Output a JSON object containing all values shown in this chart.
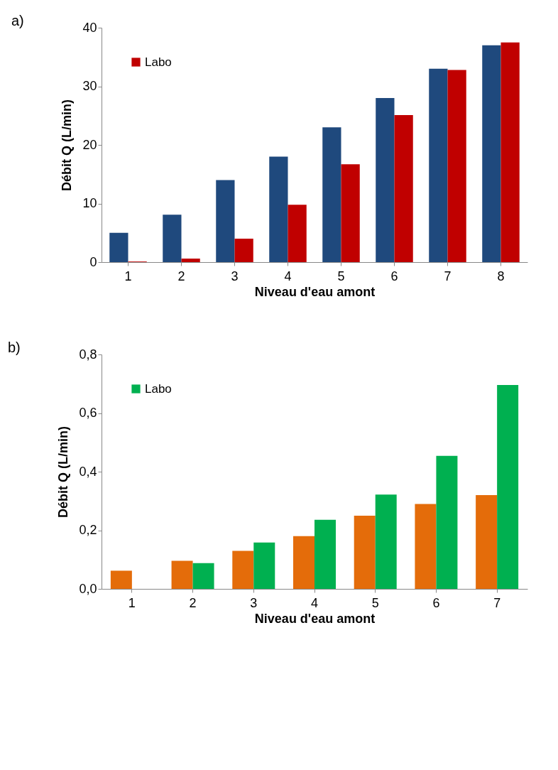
{
  "chart_data": [
    {
      "type": "bar",
      "title": "a)",
      "xlabel": "Niveau d'eau amont",
      "ylabel": "Débit Q (L/min)",
      "categories": [
        "1",
        "2",
        "3",
        "4",
        "5",
        "6",
        "7",
        "8"
      ],
      "series": [
        {
          "color": "#1f497d",
          "values": [
            5.0,
            8.1,
            14.0,
            18.0,
            23.0,
            28.0,
            33.0,
            37.0
          ]
        },
        {
          "name": "Labo",
          "color": "#c00000",
          "values": [
            0.1,
            0.6,
            4.0,
            9.8,
            16.7,
            25.1,
            32.8,
            37.5
          ]
        }
      ],
      "ylim": [
        0,
        40
      ],
      "yticks": [
        0,
        10,
        20,
        30,
        40
      ],
      "grid": false,
      "legend": "top left"
    },
    {
      "type": "bar",
      "title": "b)",
      "xlabel": "Niveau d'eau amont",
      "ylabel": "Débit Q (L/min)",
      "categories": [
        "1",
        "2",
        "3",
        "4",
        "5",
        "6",
        "7"
      ],
      "series": [
        {
          "color": "#e46c0a",
          "values": [
            0.062,
            0.096,
            0.13,
            0.18,
            0.25,
            0.29,
            0.32
          ]
        },
        {
          "name": "Labo",
          "color": "#00b050",
          "values": [
            null,
            0.088,
            0.158,
            0.236,
            0.322,
            0.454,
            0.696
          ]
        }
      ],
      "ylim": [
        0,
        0.8
      ],
      "yticks": [
        {
          "value": 0,
          "label": "0,0"
        },
        {
          "value": 0.2,
          "label": "0,2"
        },
        {
          "value": 0.4,
          "label": "0,4"
        },
        {
          "value": 0.6,
          "label": "0,6"
        },
        {
          "value": 0.8,
          "label": "0,8"
        }
      ],
      "grid": false,
      "legend": "top left"
    }
  ]
}
